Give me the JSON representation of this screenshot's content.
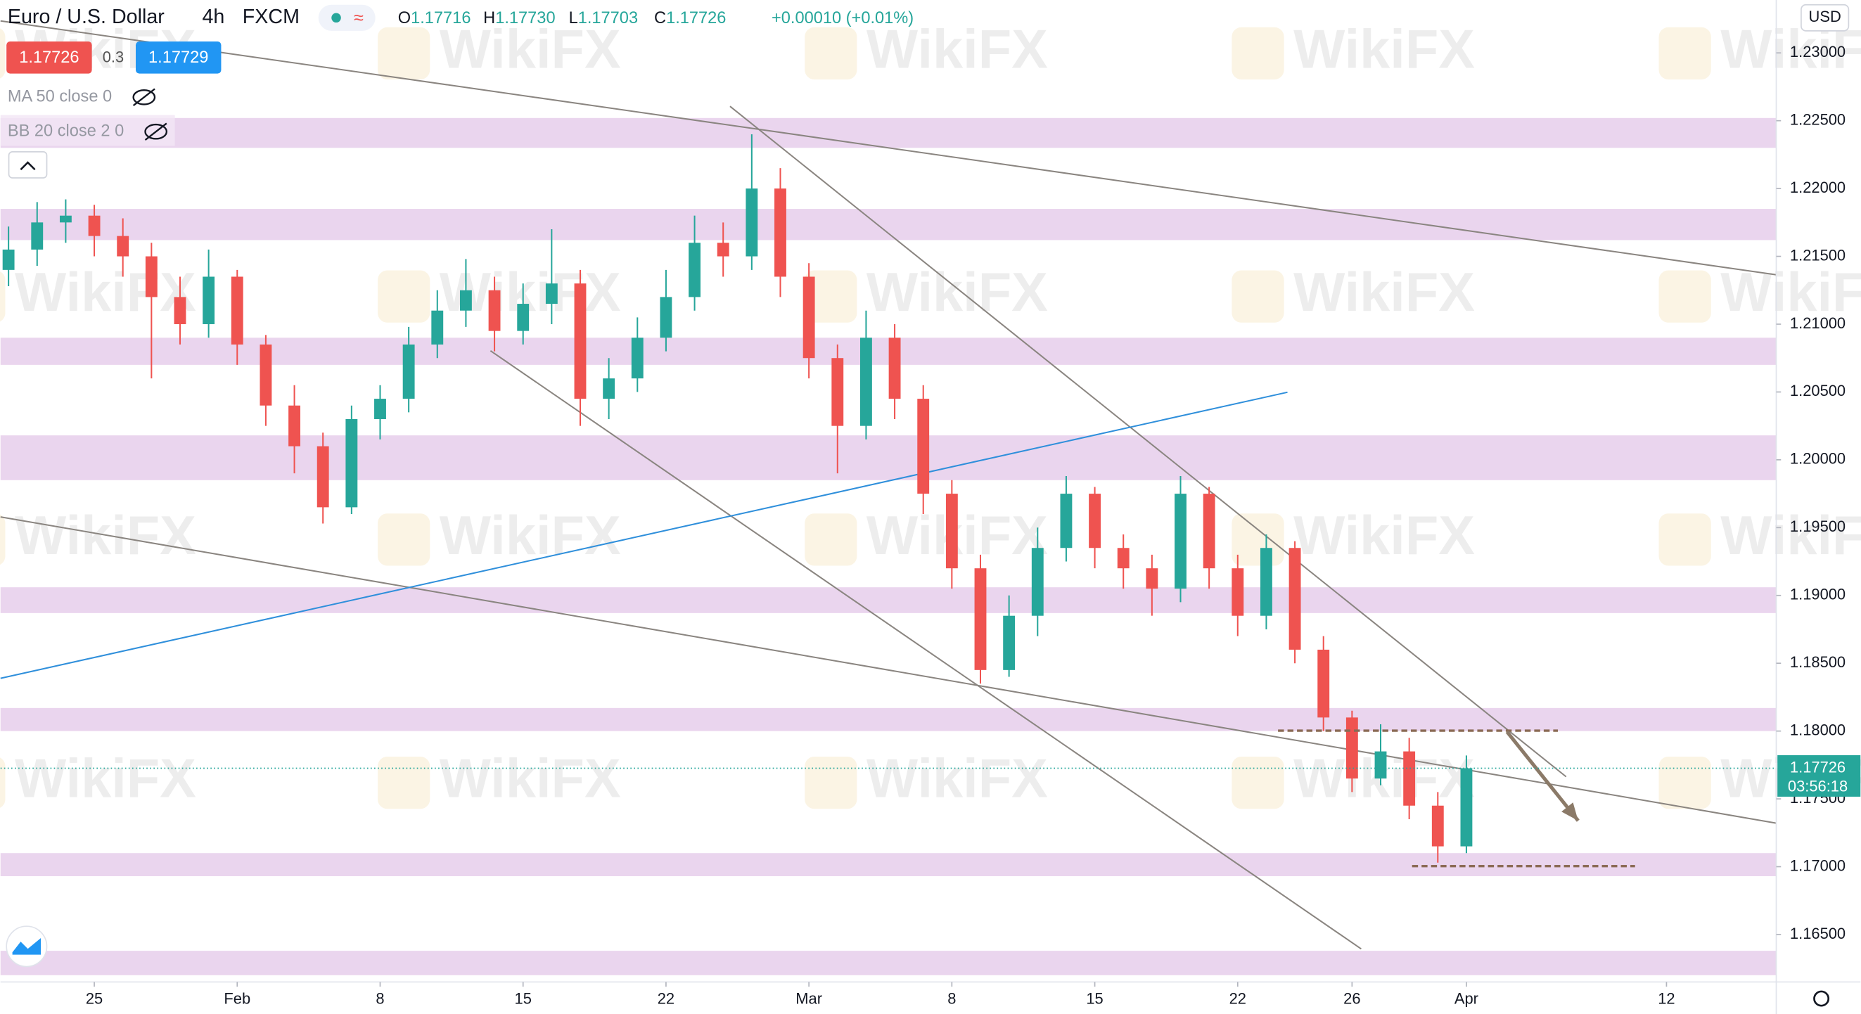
{
  "chart_data": {
    "type": "candlestick",
    "symbol": "Euro / U.S. Dollar",
    "interval": "4h",
    "source": "FXCM",
    "ohlc": [
      {
        "label": "O",
        "value": 1.17716
      },
      {
        "label": "H",
        "value": 1.1773
      },
      {
        "label": "L",
        "value": 1.17703
      },
      {
        "label": "C",
        "value": 1.17726
      }
    ],
    "ohlc_value_labels": [
      "1.17716",
      "1.17730",
      "1.17703",
      "1.17726"
    ],
    "change": "+0.00010 (+0.01%)",
    "sell": "1.17726",
    "spread": "0.3",
    "buy": "1.17729",
    "indicators": [
      "MA 50 close 0",
      "BB 20 close 2 0"
    ],
    "currency": "USD",
    "last_price": {
      "value": 1.17726,
      "label": "1.17726"
    },
    "countdown": "03:56:18",
    "watermark": "WikiFX",
    "up_color": "#26a69a",
    "down_color": "#ef5350",
    "xlim": [
      -3.28,
      58.84
    ],
    "ylim": [
      1.1615,
      1.2339
    ],
    "xticks": [
      {
        "value": 0,
        "label": "25"
      },
      {
        "value": 5,
        "label": "Feb"
      },
      {
        "value": 10,
        "label": "8"
      },
      {
        "value": 15,
        "label": "15"
      },
      {
        "value": 20,
        "label": "22"
      },
      {
        "value": 25,
        "label": "Mar"
      },
      {
        "value": 30,
        "label": "8"
      },
      {
        "value": 35,
        "label": "15"
      },
      {
        "value": 40,
        "label": "22"
      },
      {
        "value": 44,
        "label": "26"
      },
      {
        "value": 48,
        "label": "Apr"
      },
      {
        "value": 55,
        "label": "12"
      }
    ],
    "yticks": [
      {
        "value": 1.165,
        "label": "1.16500"
      },
      {
        "value": 1.17,
        "label": "1.17000"
      },
      {
        "value": 1.175,
        "label": "1.17500"
      },
      {
        "value": 1.18,
        "label": "1.18000"
      },
      {
        "value": 1.185,
        "label": "1.18500"
      },
      {
        "value": 1.19,
        "label": "1.19000"
      },
      {
        "value": 1.195,
        "label": "1.19500"
      },
      {
        "value": 1.2,
        "label": "1.20000"
      },
      {
        "value": 1.205,
        "label": "1.20500"
      },
      {
        "value": 1.21,
        "label": "1.21000"
      },
      {
        "value": 1.215,
        "label": "1.21500"
      },
      {
        "value": 1.22,
        "label": "1.22000"
      },
      {
        "value": 1.225,
        "label": "1.22500"
      },
      {
        "value": 1.23,
        "label": "1.23000"
      }
    ],
    "zones": [
      [
        1.223,
        1.2252
      ],
      [
        1.2162,
        1.2185
      ],
      [
        1.207,
        1.209
      ],
      [
        1.1985,
        1.2018
      ],
      [
        1.1887,
        1.1906
      ],
      [
        1.18,
        1.1817
      ],
      [
        1.1693,
        1.171
      ],
      [
        1.162,
        1.1638
      ]
    ],
    "zone_color": "#ead5ee",
    "trendlines": [
      {
        "x": [
          -3.28,
          58.84
        ],
        "y": [
          1.23236,
          1.21364
        ],
        "color": "#8a8580"
      },
      {
        "x": [
          22.24,
          51.49
        ],
        "y": [
          1.22606,
          1.17663
        ],
        "color": "#8a8580"
      },
      {
        "x": [
          13.86,
          44.32
        ],
        "y": [
          1.20804,
          1.16394
        ],
        "color": "#8a8580"
      },
      {
        "x": [
          -3.28,
          58.84
        ],
        "y": [
          1.19579,
          1.17321
        ],
        "color": "#8a8580"
      },
      {
        "x": [
          -3.28,
          41.74
        ],
        "y": [
          1.18389,
          1.20498
        ],
        "color": "#2f8fdb"
      }
    ],
    "levels": [
      {
        "x": [
          41.41,
          51.2
        ],
        "y": 1.18003
      },
      {
        "x": [
          46.1,
          53.9
        ],
        "y": 1.17004
      }
    ],
    "level_color": "#8b6b55",
    "arrow": {
      "x": [
        49.42,
        51.91
      ],
      "y": [
        1.17995,
        1.17339
      ],
      "color": "#8b7a68"
    },
    "x": [
      -3,
      -2,
      -1,
      0,
      1,
      2,
      3,
      4,
      5,
      6,
      7,
      8,
      9,
      10,
      11,
      12,
      13,
      14,
      15,
      16,
      17,
      18,
      19,
      20,
      21,
      22,
      23,
      24,
      25,
      26,
      27,
      28,
      29,
      30,
      31,
      32,
      33,
      34,
      35,
      36,
      37,
      38,
      39,
      40,
      41,
      42,
      43,
      44,
      45,
      46,
      47,
      48
    ],
    "open": [
      1.214,
      1.2155,
      1.2175,
      1.218,
      1.2165,
      1.215,
      1.212,
      1.21,
      1.2135,
      1.2085,
      1.204,
      1.201,
      1.1965,
      1.203,
      1.2045,
      1.2085,
      1.211,
      1.2125,
      1.2095,
      1.2115,
      1.213,
      1.2045,
      1.206,
      1.209,
      1.212,
      1.216,
      1.215,
      1.22,
      1.2135,
      1.2075,
      1.2025,
      1.209,
      1.2045,
      1.1975,
      1.192,
      1.1845,
      1.1885,
      1.1935,
      1.1975,
      1.1935,
      1.192,
      1.1905,
      1.1975,
      1.192,
      1.1885,
      1.1935,
      1.186,
      1.181,
      1.1765,
      1.1785,
      1.1745,
      1.1715
    ],
    "high": [
      1.2172,
      1.219,
      1.2192,
      1.2188,
      1.2178,
      1.216,
      1.2135,
      1.2155,
      1.214,
      1.2092,
      1.2055,
      1.202,
      1.204,
      1.2055,
      1.2098,
      1.2125,
      1.2148,
      1.2135,
      1.213,
      1.217,
      1.214,
      1.2075,
      1.2105,
      1.214,
      1.218,
      1.2175,
      1.224,
      1.2215,
      1.2145,
      1.2085,
      1.211,
      1.21,
      1.2055,
      1.1985,
      1.193,
      1.19,
      1.195,
      1.1988,
      1.198,
      1.1945,
      1.193,
      1.1988,
      1.198,
      1.193,
      1.1945,
      1.194,
      1.187,
      1.1815,
      1.1805,
      1.1795,
      1.1755,
      1.1782
    ],
    "low": [
      1.2128,
      1.2143,
      1.216,
      1.215,
      1.2135,
      1.206,
      1.2085,
      1.209,
      1.207,
      1.2025,
      1.199,
      1.1953,
      1.196,
      1.2015,
      1.2035,
      1.2075,
      1.2098,
      1.208,
      1.2085,
      1.21,
      1.2025,
      1.203,
      1.205,
      1.208,
      1.211,
      1.2135,
      1.214,
      1.212,
      1.206,
      1.199,
      1.2015,
      1.203,
      1.196,
      1.1905,
      1.1835,
      1.184,
      1.187,
      1.1925,
      1.192,
      1.1905,
      1.1885,
      1.1895,
      1.1905,
      1.187,
      1.1875,
      1.185,
      1.18,
      1.1755,
      1.176,
      1.1735,
      1.1703,
      1.171
    ],
    "close": [
      1.2155,
      1.2175,
      1.218,
      1.2165,
      1.215,
      1.212,
      1.21,
      1.2135,
      1.2085,
      1.204,
      1.201,
      1.1965,
      1.203,
      1.2045,
      1.2085,
      1.211,
      1.2125,
      1.2095,
      1.2115,
      1.213,
      1.2045,
      1.206,
      1.209,
      1.212,
      1.216,
      1.215,
      1.22,
      1.2135,
      1.2075,
      1.2025,
      1.209,
      1.2045,
      1.1975,
      1.192,
      1.1845,
      1.1885,
      1.1935,
      1.1975,
      1.1935,
      1.192,
      1.1905,
      1.1975,
      1.192,
      1.1885,
      1.1935,
      1.186,
      1.181,
      1.1765,
      1.1785,
      1.1745,
      1.1715,
      1.17726
    ]
  }
}
